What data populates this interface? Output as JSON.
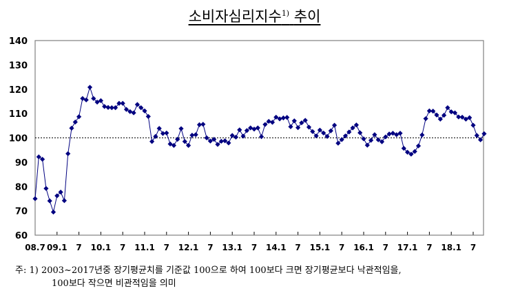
{
  "title": "소비자심리지수",
  "title_sup": "1)",
  "title_suffix": "추이",
  "note": {
    "line1": "주: 1) 2003~2017년중 장기평균치를 기준값 100으로 하여 100보다 크면 장기평균보다 낙관적임을,",
    "line2": "100보다 작으면 비관적임을 의미"
  },
  "chart_data": {
    "type": "line",
    "title": "소비자심리지수 추이",
    "xlabel": "",
    "ylabel": "",
    "ylim": [
      60,
      140
    ],
    "yticks": [
      60,
      70,
      80,
      90,
      100,
      110,
      120,
      130,
      140
    ],
    "reference_line": 100,
    "xtick_labels": [
      "08.7",
      "09.1",
      "7",
      "10.1",
      "7",
      "11.1",
      "7",
      "12.1",
      "7",
      "13.1",
      "7",
      "14.1",
      "7",
      "15.1",
      "7",
      "16.1",
      "7",
      "17.1",
      "7",
      "18.1",
      "7"
    ],
    "x_start": "2008.7",
    "x_end": "2018.10",
    "frequency": "monthly",
    "series": [
      {
        "name": "소비자심리지수",
        "color": "#000080",
        "marker": "diamond",
        "values": [
          75.0,
          92.2,
          91.2,
          79.2,
          74.1,
          69.5,
          76.2,
          77.7,
          74.2,
          93.5,
          104.0,
          106.5,
          108.7,
          116.2,
          115.6,
          120.8,
          116.2,
          114.7,
          115.3,
          112.9,
          112.5,
          112.4,
          112.4,
          114.2,
          114.2,
          111.7,
          110.8,
          110.3,
          113.7,
          112.4,
          111.1,
          108.8,
          98.5,
          100.6,
          103.9,
          101.8,
          102.0,
          97.5,
          96.9,
          99.4,
          103.8,
          98.5,
          96.9,
          101.1,
          101.3,
          105.4,
          105.6,
          100.0,
          98.7,
          99.4,
          97.3,
          98.6,
          98.8,
          97.9,
          101.0,
          100.3,
          103.3,
          100.7,
          103.0,
          104.1,
          103.6,
          104.1,
          100.5,
          105.5,
          106.8,
          106.4,
          108.5,
          107.8,
          108.2,
          108.4,
          104.6,
          107.0,
          104.2,
          106.2,
          107.2,
          104.4,
          102.6,
          100.8,
          103.2,
          102.0,
          100.6,
          102.9,
          105.2,
          97.8,
          99.3,
          100.8,
          102.4,
          104.1,
          105.3,
          102.1,
          99.6,
          97.0,
          99.0,
          101.3,
          99.2,
          98.4,
          100.4,
          101.6,
          101.9,
          101.3,
          101.9,
          95.7,
          94.1,
          93.3,
          94.4,
          96.7,
          101.2,
          107.9,
          111.1,
          111.0,
          109.4,
          107.7,
          109.3,
          112.4,
          110.7,
          110.3,
          108.6,
          108.5,
          107.7,
          108.3,
          105.2,
          101.0,
          99.2,
          101.7
        ]
      }
    ],
    "legend": null,
    "grid": false
  }
}
